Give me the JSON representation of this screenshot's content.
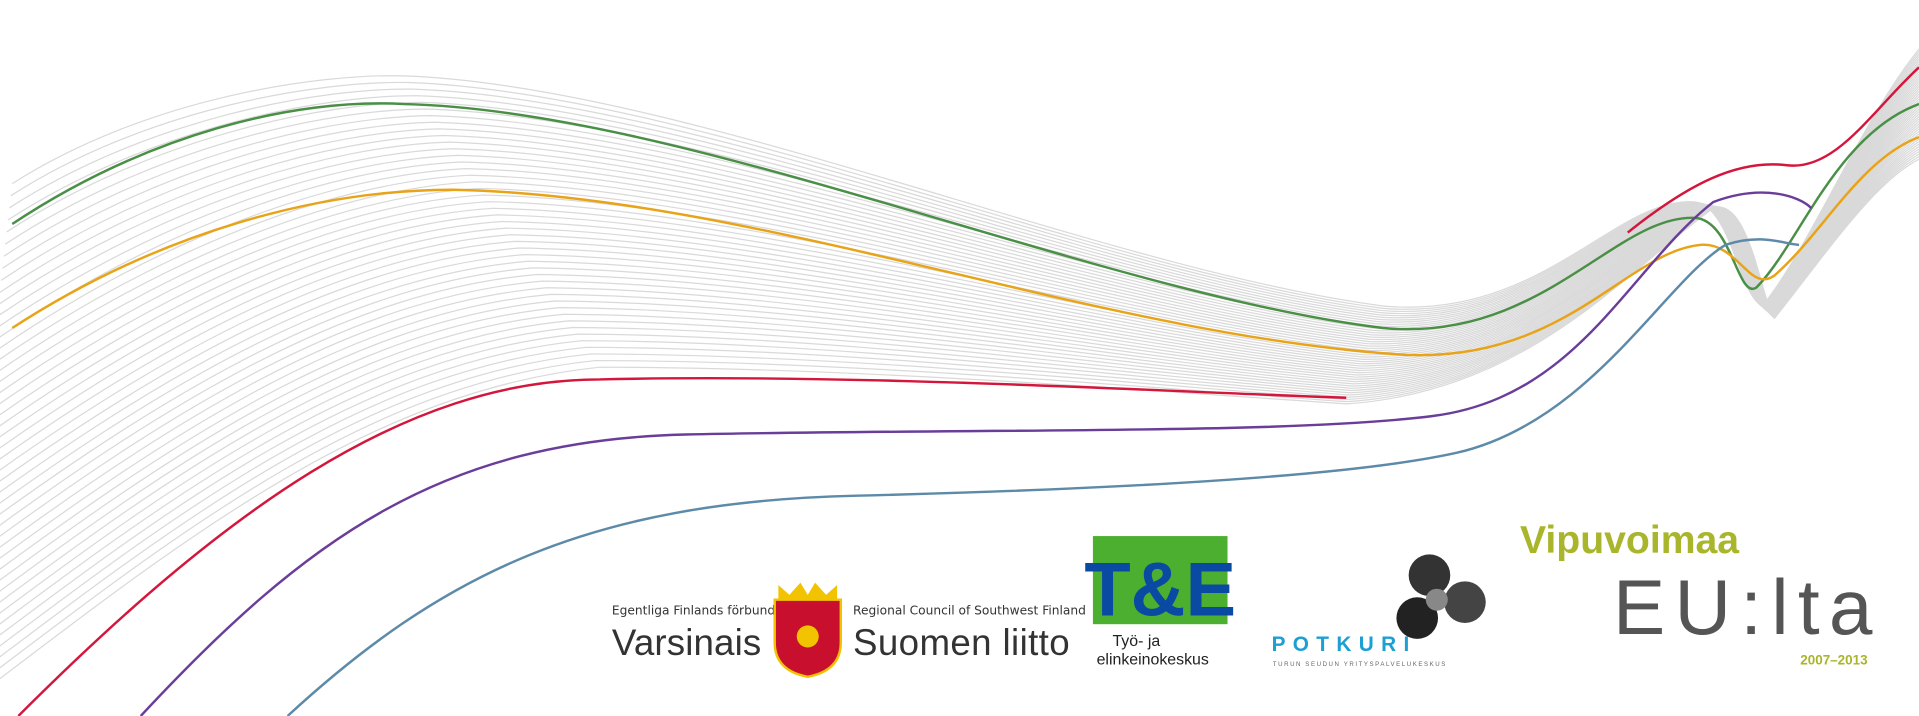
{
  "logos": {
    "regional_council": {
      "swedish": "Egentliga Finlands förbund",
      "name_left": "Varsinais",
      "english": "Regional Council of Southwest Finland",
      "name_right": "Suomen liitto"
    },
    "te_centre": {
      "mark": "T&E",
      "line1": "Työ- ja",
      "line2": "elinkeinokeskus"
    },
    "potkuri": {
      "name": "POTKURI",
      "tagline": "TURUN SEUDUN YRITYSPALVELUKESKUS"
    },
    "eu": {
      "line1": "Vipuvoimaa",
      "line2": "EU:lta",
      "years": "2007–2013"
    }
  }
}
